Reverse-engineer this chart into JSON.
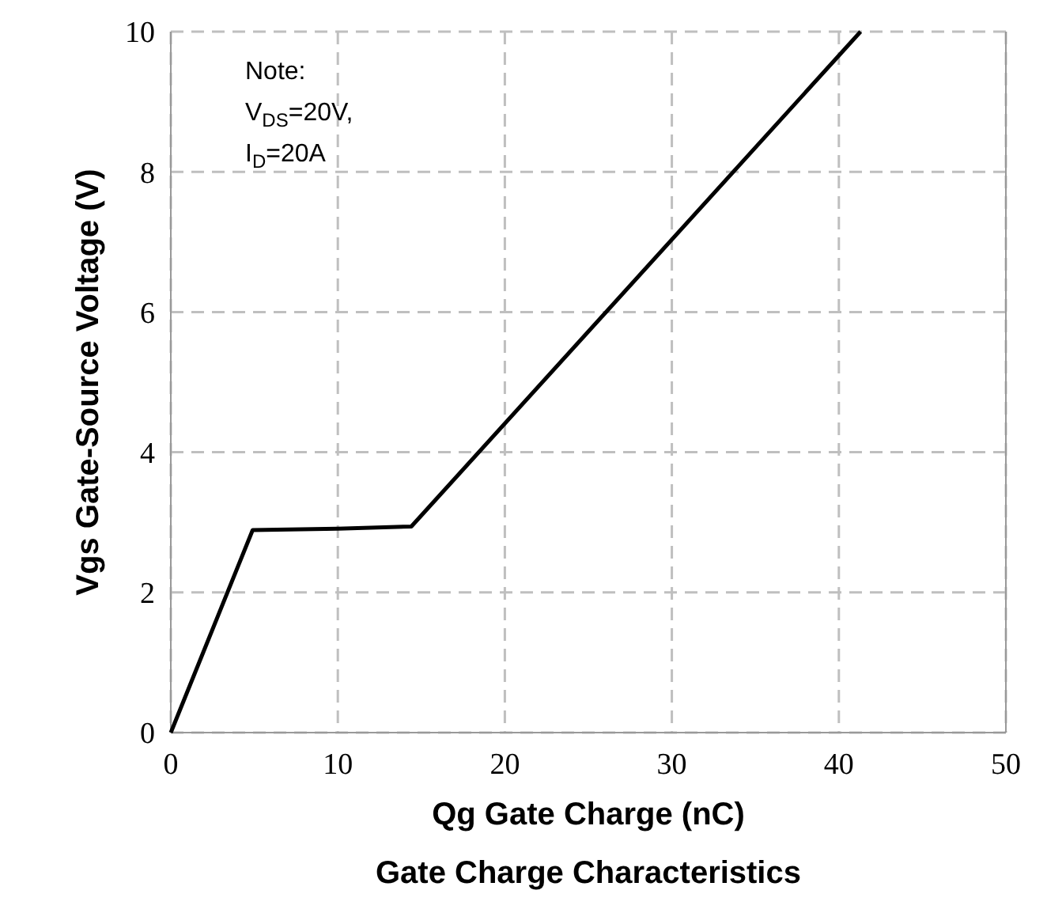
{
  "chart_data": {
    "type": "line",
    "title": "Gate Charge Characteristics",
    "xlabel": "Qg Gate Charge (nC)",
    "ylabel": "Vgs Gate-Source Voltage (V)",
    "x": [
      0,
      4.9,
      10,
      14.4,
      41.3
    ],
    "series": [
      {
        "color": "#000000",
        "values": [
          0,
          2.89,
          2.91,
          2.94,
          10
        ]
      }
    ],
    "xlim": [
      0,
      50
    ],
    "xticks": [
      0,
      10,
      20,
      30,
      40,
      50
    ],
    "ylim": [
      0,
      10
    ],
    "yticks": [
      0,
      2,
      4,
      6,
      8,
      10
    ],
    "grid": true,
    "marker": "none",
    "line_style": "solid",
    "annotations": [
      "Note:",
      "V$_{DS}$=20V,",
      "I$_{D}$=20A"
    ]
  }
}
